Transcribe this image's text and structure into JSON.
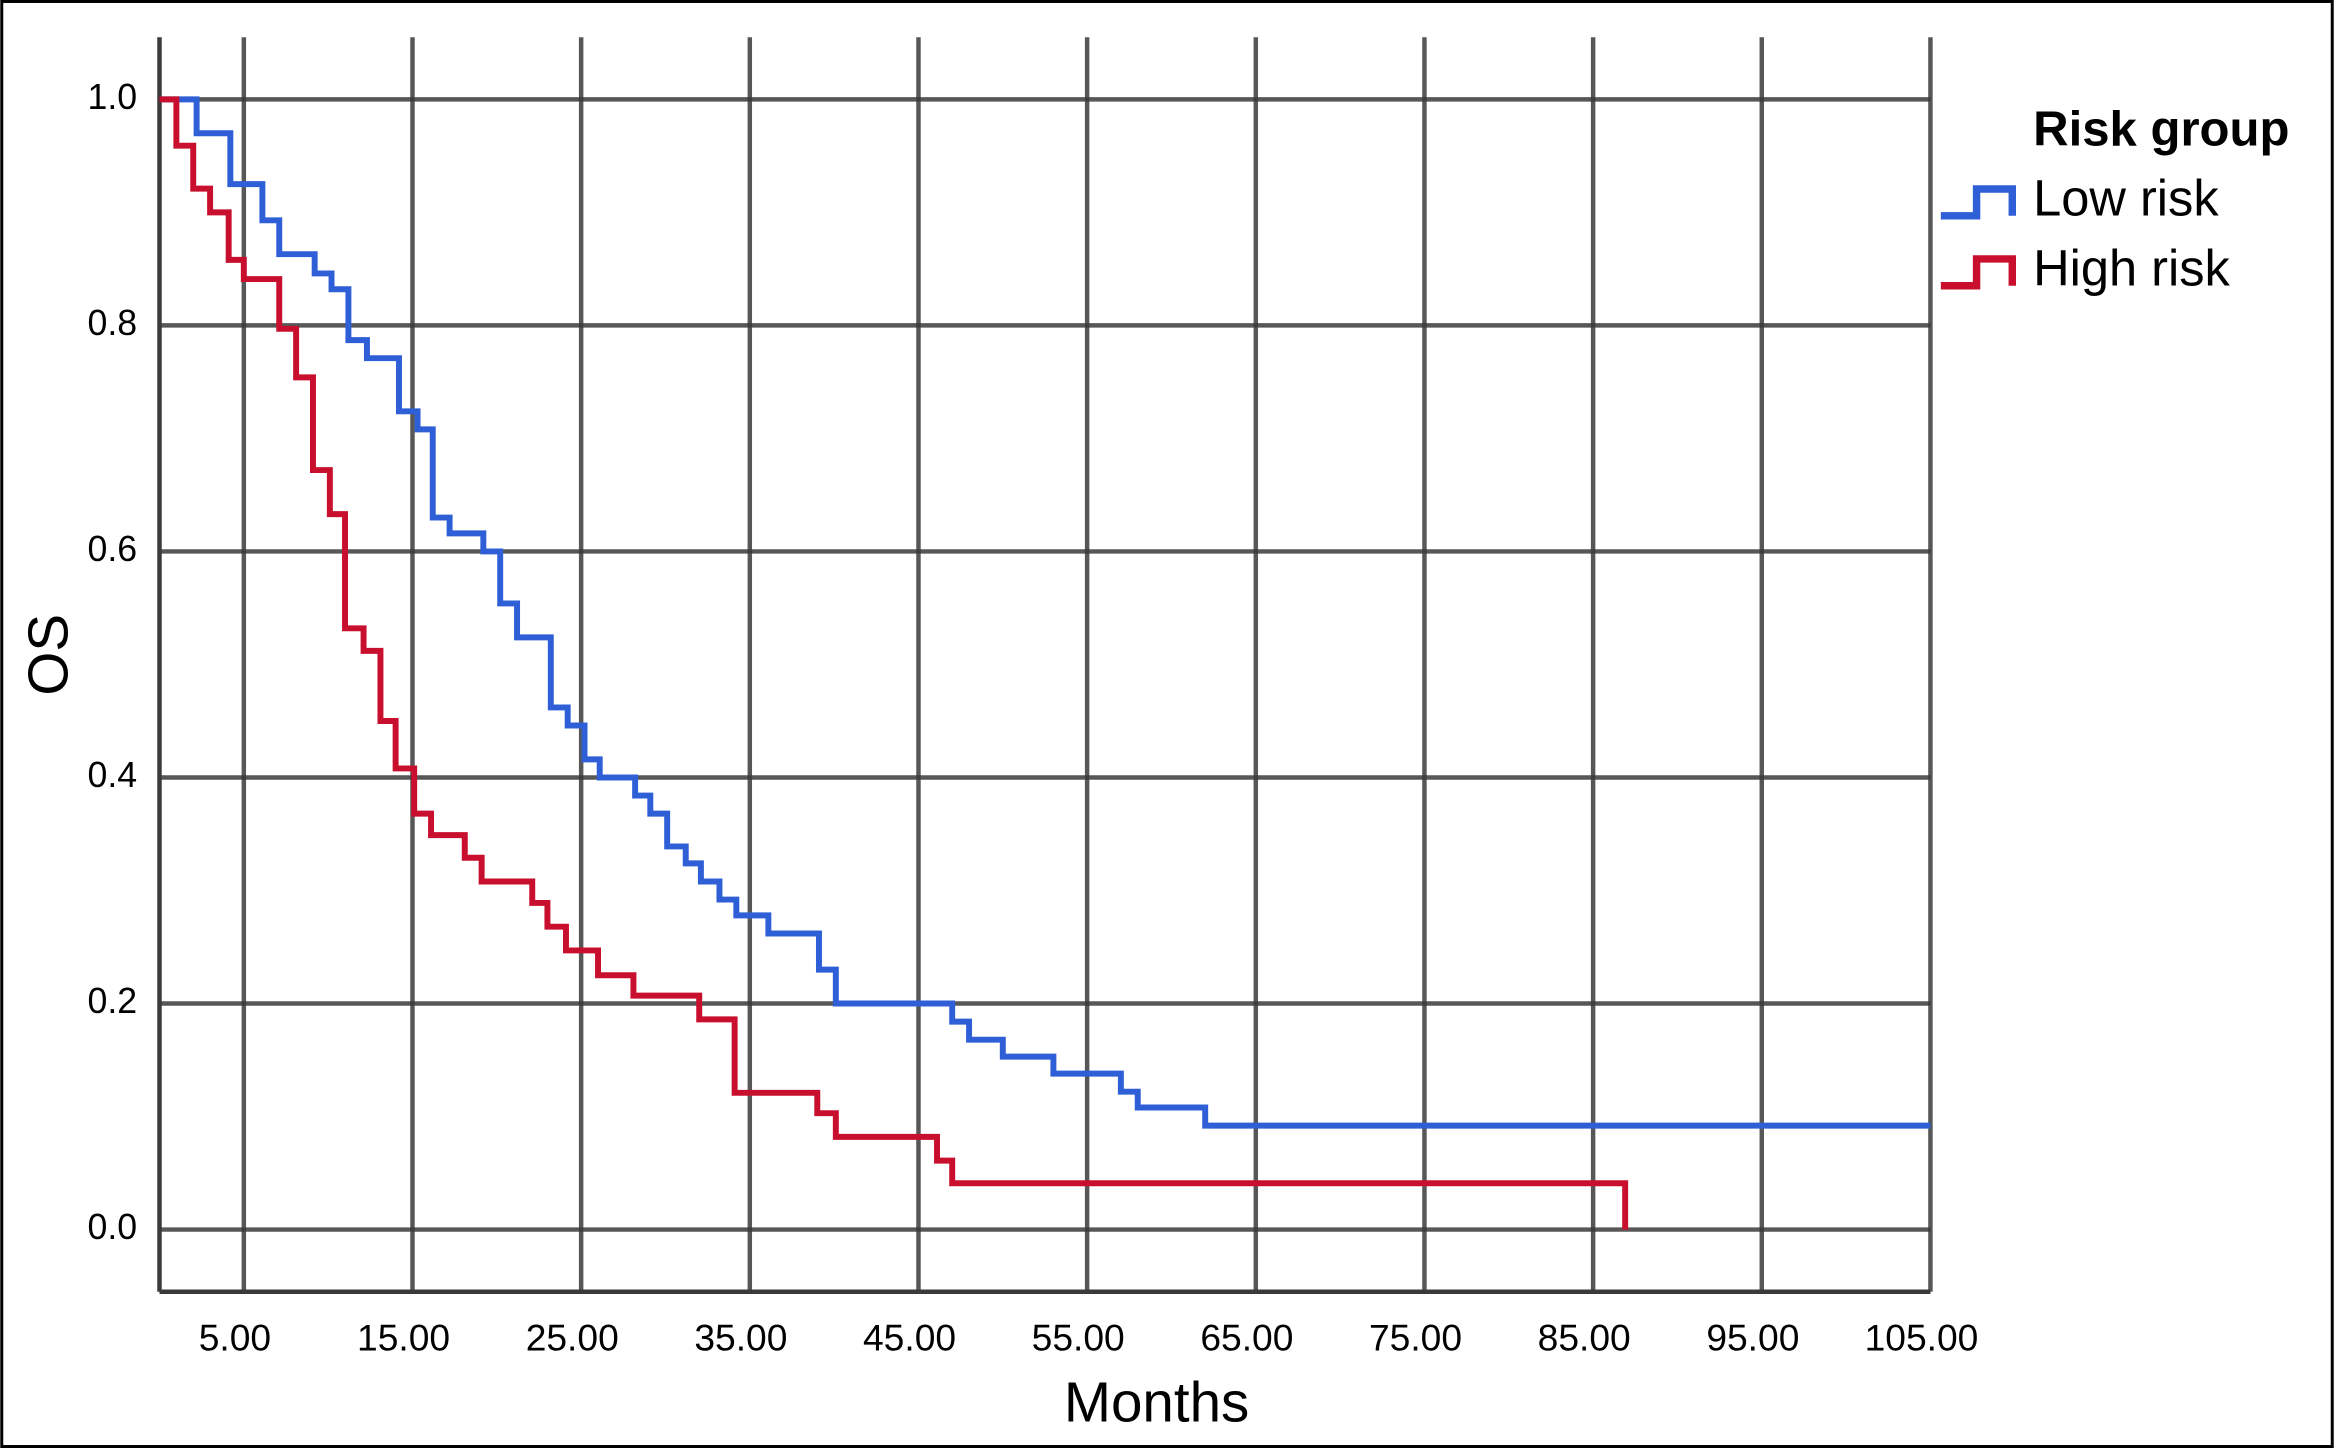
{
  "chart_data": {
    "type": "step",
    "xlabel": "Months",
    "ylabel": "OS",
    "legend_title": "Risk group",
    "legend": "right",
    "grid": true,
    "xlim": [
      0,
      105
    ],
    "ylim": [
      -0.055,
      1.055
    ],
    "xticks": [
      {
        "value": 5,
        "label": "5.00"
      },
      {
        "value": 15,
        "label": "15.00"
      },
      {
        "value": 25,
        "label": "25.00"
      },
      {
        "value": 35,
        "label": "35.00"
      },
      {
        "value": 45,
        "label": "45.00"
      },
      {
        "value": 55,
        "label": "55.00"
      },
      {
        "value": 65,
        "label": "65.00"
      },
      {
        "value": 75,
        "label": "75.00"
      },
      {
        "value": 85,
        "label": "85.00"
      },
      {
        "value": 95,
        "label": "95.00"
      },
      {
        "value": 105,
        "label": "105.00"
      }
    ],
    "yticks": [
      {
        "value": 0,
        "label": "0.0"
      },
      0.2,
      0.4,
      0.6,
      0.8,
      {
        "value": 1,
        "label": "1.0"
      }
    ],
    "series": [
      {
        "name": "Low risk",
        "color": "#2f5fd6",
        "x": [
          0,
          2.2,
          4.2,
          6.1,
          7.1,
          9.2,
          10.2,
          11.2,
          12.3,
          14.2,
          15.3,
          16.2,
          17.2,
          19.2,
          20.2,
          21.2,
          23.2,
          24.2,
          25.2,
          26.1,
          28.2,
          29.1,
          30.1,
          31.2,
          32.1,
          33.2,
          34.2,
          36.1,
          39.1,
          40.1,
          47.0,
          48.0,
          50.0,
          53.0,
          57.0,
          58.0,
          62.0,
          105
        ],
        "values": [
          1.0,
          0.97,
          0.925,
          0.893,
          0.863,
          0.846,
          0.832,
          0.787,
          0.771,
          0.724,
          0.708,
          0.63,
          0.616,
          0.6,
          0.554,
          0.524,
          0.462,
          0.446,
          0.416,
          0.4,
          0.384,
          0.368,
          0.339,
          0.324,
          0.308,
          0.292,
          0.278,
          0.262,
          0.23,
          0.2,
          0.184,
          0.168,
          0.153,
          0.138,
          0.122,
          0.108,
          0.092,
          0.092
        ]
      },
      {
        "name": "High risk",
        "color": "#c8102e",
        "x": [
          0,
          1.0,
          2.0,
          3.0,
          4.1,
          5.0,
          7.1,
          8.1,
          9.1,
          10.1,
          11.0,
          12.1,
          13.1,
          14.0,
          15.1,
          16.1,
          18.1,
          19.1,
          22.1,
          23.0,
          24.1,
          26.0,
          28.1,
          32.0,
          34.1,
          39.0,
          40.1,
          46.1,
          47.0,
          86.9
        ],
        "values": [
          1.0,
          0.959,
          0.921,
          0.9,
          0.858,
          0.841,
          0.797,
          0.754,
          0.672,
          0.633,
          0.532,
          0.512,
          0.45,
          0.408,
          0.368,
          0.349,
          0.329,
          0.308,
          0.289,
          0.268,
          0.247,
          0.225,
          0.207,
          0.186,
          0.121,
          0.103,
          0.082,
          0.061,
          0.041,
          0.0
        ]
      }
    ]
  }
}
